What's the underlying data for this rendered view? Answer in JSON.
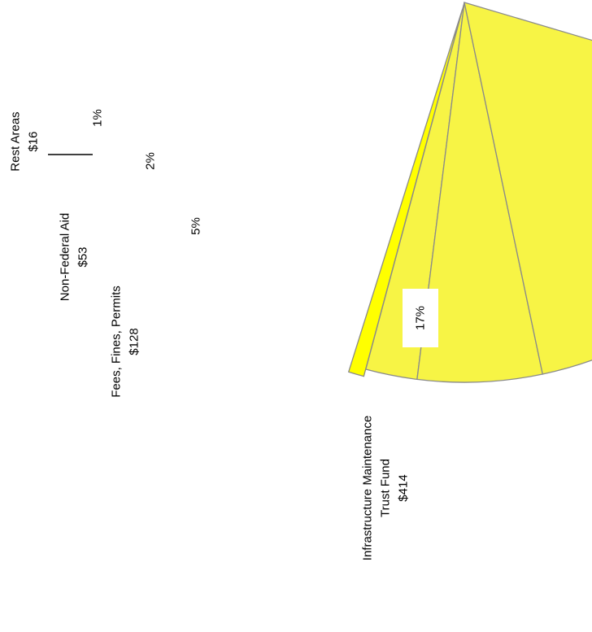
{
  "chart_data": {
    "type": "pie",
    "title": "",
    "slices": [
      {
        "category": [
          "Rest Areas",
          "$16"
        ],
        "value": 16,
        "percent_label": "1%",
        "color": "#FFFF00"
      },
      {
        "category": [
          "Non-Federal Aid",
          "$53"
        ],
        "value": 53,
        "percent_label": "2%",
        "color": "#F7F445"
      },
      {
        "category": [
          "Fees, Fines, Permits",
          "$128"
        ],
        "value": 128,
        "percent_label": "5%",
        "color": "#F7F445"
      },
      {
        "category": [
          "Infrastructure Maintenance",
          "Trust Fund",
          "$414"
        ],
        "value": 414,
        "percent_label": "17%",
        "color": "#F7F445"
      }
    ]
  }
}
